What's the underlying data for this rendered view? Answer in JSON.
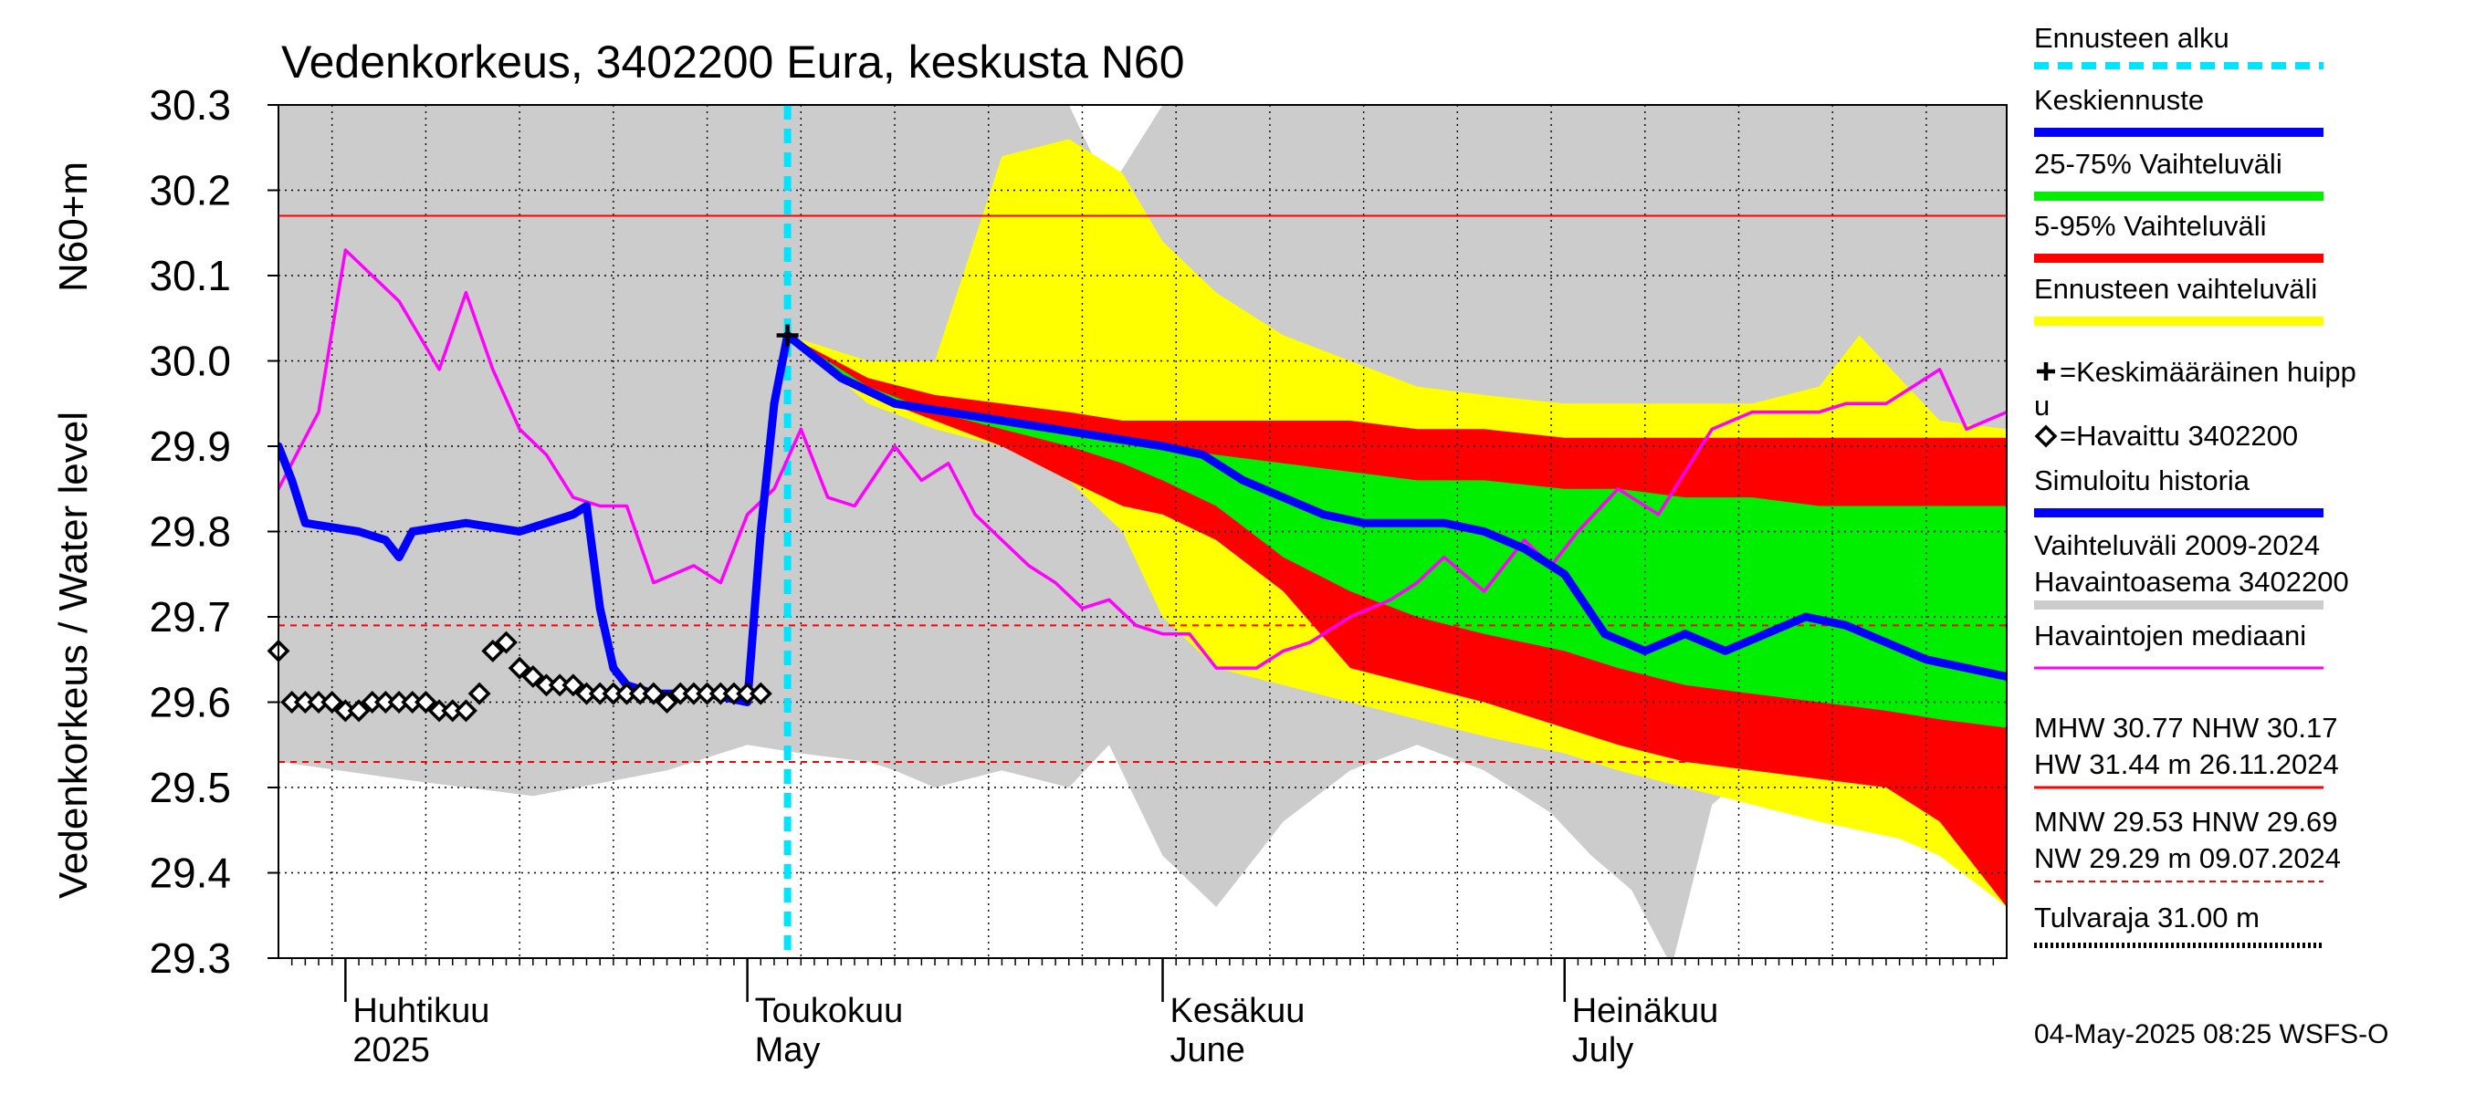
{
  "chart_data": {
    "type": "area",
    "title": "Vedenkorkeus, 3402200 Eura, keskusta N60",
    "ylabel_left": "Vedenkorkeus / Water level",
    "ylabel_unit": "N60+m",
    "ylim": [
      29.3,
      30.3
    ],
    "y_ticks": [
      "29.3",
      "29.4",
      "29.5",
      "29.6",
      "29.7",
      "29.8",
      "29.9",
      "30.0",
      "30.1",
      "30.2",
      "30.3"
    ],
    "x_range": [
      "2025-03-27",
      "2025-08-03"
    ],
    "months": [
      {
        "date": "2025-04-01",
        "fi": "Huhtikuu",
        "en": "2025"
      },
      {
        "date": "2025-05-01",
        "fi": "Toukokuu",
        "en": "May"
      },
      {
        "date": "2025-06-01",
        "fi": "Kesäkuu",
        "en": "June"
      },
      {
        "date": "2025-07-01",
        "fi": "Heinäkuu",
        "en": "July"
      }
    ],
    "forecast_start": "2025-05-04",
    "reference_lines": [
      {
        "name": "NHW",
        "value": 30.17,
        "style": "solid-red"
      },
      {
        "name": "HNW",
        "value": 29.69,
        "style": "dashed-red"
      },
      {
        "name": "MNW",
        "value": 29.53,
        "style": "dashed-red"
      }
    ],
    "series": [
      {
        "name": "Vaihteluväli 2009-2024 Havaintoasema 3402200",
        "type": "band",
        "x": [
          "2025-03-27",
          "2025-04-05",
          "2025-04-15",
          "2025-04-25",
          "2025-05-01",
          "2025-05-05",
          "2025-05-10",
          "2025-05-12",
          "2025-05-15",
          "2025-05-20",
          "2025-05-25",
          "2025-05-28",
          "2025-06-01",
          "2025-06-05",
          "2025-06-10",
          "2025-06-15",
          "2025-06-20",
          "2025-06-25",
          "2025-06-30",
          "2025-07-03",
          "2025-07-06",
          "2025-07-09",
          "2025-07-12",
          "2025-07-15",
          "2025-07-20",
          "2025-07-25",
          "2025-07-31",
          "2025-08-03"
        ],
        "low": [
          29.53,
          29.51,
          29.49,
          29.52,
          29.55,
          29.54,
          29.53,
          29.52,
          29.5,
          29.52,
          29.5,
          29.55,
          29.42,
          29.36,
          29.46,
          29.52,
          29.55,
          29.52,
          29.47,
          29.42,
          29.38,
          29.29,
          29.48,
          29.52,
          29.56,
          29.6,
          29.62,
          29.64
        ],
        "high": [
          30.3,
          30.3,
          30.3,
          30.3,
          30.3,
          30.3,
          30.3,
          30.3,
          30.3,
          30.3,
          30.3,
          30.2,
          30.3,
          30.3,
          30.3,
          30.3,
          30.3,
          30.3,
          30.3,
          30.3,
          30.3,
          30.3,
          30.3,
          30.3,
          30.3,
          30.3,
          30.3,
          30.3
        ]
      },
      {
        "name": "Ennusteen vaihteluväli",
        "type": "band",
        "x": [
          "2025-05-04",
          "2025-05-10",
          "2025-05-15",
          "2025-05-20",
          "2025-05-25",
          "2025-05-29",
          "2025-06-01",
          "2025-06-05",
          "2025-06-10",
          "2025-06-15",
          "2025-06-20",
          "2025-06-25",
          "2025-07-01",
          "2025-07-05",
          "2025-07-10",
          "2025-07-15",
          "2025-07-20",
          "2025-07-23",
          "2025-07-26",
          "2025-07-29",
          "2025-08-03"
        ],
        "low": [
          30.03,
          29.95,
          29.92,
          29.9,
          29.86,
          29.8,
          29.7,
          29.64,
          29.62,
          29.6,
          29.58,
          29.56,
          29.54,
          29.52,
          29.5,
          29.48,
          29.46,
          29.45,
          29.44,
          29.42,
          29.36
        ],
        "high": [
          30.03,
          30.0,
          30.0,
          30.24,
          30.26,
          30.22,
          30.14,
          30.08,
          30.03,
          30.0,
          29.97,
          29.96,
          29.95,
          29.95,
          29.95,
          29.95,
          29.97,
          30.03,
          29.98,
          29.93,
          29.92
        ]
      },
      {
        "name": "5-95% Vaihteluväli",
        "type": "band",
        "x": [
          "2025-05-04",
          "2025-05-10",
          "2025-05-15",
          "2025-05-20",
          "2025-05-25",
          "2025-05-29",
          "2025-06-01",
          "2025-06-05",
          "2025-06-10",
          "2025-06-15",
          "2025-06-20",
          "2025-06-25",
          "2025-07-01",
          "2025-07-05",
          "2025-07-10",
          "2025-07-15",
          "2025-07-20",
          "2025-07-25",
          "2025-07-29",
          "2025-08-03"
        ],
        "low": [
          30.03,
          29.96,
          29.93,
          29.9,
          29.86,
          29.83,
          29.82,
          29.79,
          29.73,
          29.64,
          29.62,
          29.6,
          29.57,
          29.55,
          29.53,
          29.52,
          29.51,
          29.5,
          29.46,
          29.36
        ],
        "high": [
          30.03,
          29.98,
          29.96,
          29.95,
          29.94,
          29.93,
          29.93,
          29.93,
          29.93,
          29.93,
          29.92,
          29.92,
          29.91,
          29.91,
          29.91,
          29.91,
          29.91,
          29.91,
          29.91,
          29.91
        ]
      },
      {
        "name": "25-75% Vaihteluväli",
        "type": "band",
        "x": [
          "2025-05-04",
          "2025-05-10",
          "2025-05-15",
          "2025-05-20",
          "2025-05-25",
          "2025-05-29",
          "2025-06-01",
          "2025-06-05",
          "2025-06-10",
          "2025-06-15",
          "2025-06-20",
          "2025-06-25",
          "2025-07-01",
          "2025-07-05",
          "2025-07-10",
          "2025-07-15",
          "2025-07-20",
          "2025-07-25",
          "2025-07-29",
          "2025-08-03"
        ],
        "low": [
          30.03,
          29.96,
          29.94,
          29.92,
          29.9,
          29.88,
          29.86,
          29.83,
          29.77,
          29.73,
          29.7,
          29.68,
          29.66,
          29.64,
          29.62,
          29.61,
          29.6,
          29.59,
          29.58,
          29.57
        ],
        "high": [
          30.03,
          29.97,
          29.94,
          29.93,
          29.92,
          29.91,
          29.9,
          29.89,
          29.88,
          29.87,
          29.86,
          29.86,
          29.85,
          29.85,
          29.84,
          29.84,
          29.83,
          29.83,
          29.83,
          29.83
        ]
      },
      {
        "name": "Havaintojen mediaani",
        "type": "line",
        "color": "#ff00ff",
        "x": [
          "2025-03-27",
          "2025-03-30",
          "2025-04-01",
          "2025-04-03",
          "2025-04-05",
          "2025-04-08",
          "2025-04-10",
          "2025-04-12",
          "2025-04-14",
          "2025-04-16",
          "2025-04-18",
          "2025-04-20",
          "2025-04-22",
          "2025-04-24",
          "2025-04-27",
          "2025-04-29",
          "2025-05-01",
          "2025-05-03",
          "2025-05-05",
          "2025-05-07",
          "2025-05-09",
          "2025-05-12",
          "2025-05-14",
          "2025-05-16",
          "2025-05-18",
          "2025-05-20",
          "2025-05-22",
          "2025-05-24",
          "2025-05-26",
          "2025-05-28",
          "2025-05-30",
          "2025-06-01",
          "2025-06-03",
          "2025-06-05",
          "2025-06-08",
          "2025-06-10",
          "2025-06-12",
          "2025-06-15",
          "2025-06-18",
          "2025-06-20",
          "2025-06-22",
          "2025-06-25",
          "2025-06-28",
          "2025-06-30",
          "2025-07-02",
          "2025-07-05",
          "2025-07-08",
          "2025-07-10",
          "2025-07-12",
          "2025-07-15",
          "2025-07-18",
          "2025-07-20",
          "2025-07-22",
          "2025-07-25",
          "2025-07-27",
          "2025-07-29",
          "2025-07-31",
          "2025-08-03"
        ],
        "y": [
          29.85,
          29.94,
          30.13,
          30.1,
          30.07,
          29.99,
          30.08,
          29.99,
          29.92,
          29.89,
          29.84,
          29.83,
          29.83,
          29.74,
          29.76,
          29.74,
          29.82,
          29.85,
          29.92,
          29.84,
          29.83,
          29.9,
          29.86,
          29.88,
          29.82,
          29.79,
          29.76,
          29.74,
          29.71,
          29.72,
          29.69,
          29.68,
          29.68,
          29.64,
          29.64,
          29.66,
          29.67,
          29.7,
          29.72,
          29.74,
          29.77,
          29.73,
          29.79,
          29.76,
          29.8,
          29.85,
          29.82,
          29.87,
          29.92,
          29.94,
          29.94,
          29.94,
          29.95,
          29.95,
          29.97,
          29.99,
          29.92,
          29.94
        ]
      },
      {
        "name": "Simuloitu historia",
        "type": "line",
        "color": "#0000ff",
        "x": [
          "2025-03-27",
          "2025-03-28",
          "2025-03-29",
          "2025-04-02",
          "2025-04-04",
          "2025-04-05",
          "2025-04-06",
          "2025-04-10",
          "2025-04-14",
          "2025-04-18",
          "2025-04-19",
          "2025-04-20",
          "2025-04-21",
          "2025-04-22",
          "2025-04-24",
          "2025-04-28",
          "2025-05-01",
          "2025-05-02",
          "2025-05-03"
        ],
        "y": [
          29.9,
          29.86,
          29.81,
          29.8,
          29.79,
          29.77,
          29.8,
          29.81,
          29.8,
          29.82,
          29.83,
          29.71,
          29.64,
          29.62,
          29.61,
          29.61,
          29.6,
          29.8,
          29.95
        ]
      },
      {
        "name": "Keskiennuste",
        "type": "line",
        "color": "#0000ff",
        "x": [
          "2025-05-03",
          "2025-05-04",
          "2025-05-08",
          "2025-05-12",
          "2025-05-16",
          "2025-05-20",
          "2025-05-24",
          "2025-05-28",
          "2025-06-01",
          "2025-06-04",
          "2025-06-07",
          "2025-06-10",
          "2025-06-13",
          "2025-06-16",
          "2025-06-19",
          "2025-06-22",
          "2025-06-25",
          "2025-06-28",
          "2025-07-01",
          "2025-07-04",
          "2025-07-07",
          "2025-07-10",
          "2025-07-13",
          "2025-07-16",
          "2025-07-19",
          "2025-07-22",
          "2025-07-25",
          "2025-07-28",
          "2025-07-31",
          "2025-08-03"
        ],
        "y": [
          29.95,
          30.03,
          29.98,
          29.95,
          29.94,
          29.93,
          29.92,
          29.91,
          29.9,
          29.89,
          29.86,
          29.84,
          29.82,
          29.81,
          29.81,
          29.81,
          29.8,
          29.78,
          29.75,
          29.68,
          29.66,
          29.68,
          29.66,
          29.68,
          29.7,
          29.69,
          29.67,
          29.65,
          29.64,
          29.63
        ]
      },
      {
        "name": "Havaittu 3402200",
        "type": "scatter",
        "marker": "diamond",
        "x": [
          "2025-03-27",
          "2025-03-28",
          "2025-03-29",
          "2025-03-30",
          "2025-03-31",
          "2025-04-01",
          "2025-04-02",
          "2025-04-03",
          "2025-04-04",
          "2025-04-05",
          "2025-04-06",
          "2025-04-07",
          "2025-04-08",
          "2025-04-09",
          "2025-04-10",
          "2025-04-11",
          "2025-04-12",
          "2025-04-13",
          "2025-04-14",
          "2025-04-15",
          "2025-04-16",
          "2025-04-17",
          "2025-04-18",
          "2025-04-19",
          "2025-04-20",
          "2025-04-21",
          "2025-04-22",
          "2025-04-23",
          "2025-04-24",
          "2025-04-25",
          "2025-04-26",
          "2025-04-27",
          "2025-04-28",
          "2025-04-29",
          "2025-04-30",
          "2025-05-01",
          "2025-05-02"
        ],
        "y": [
          29.66,
          29.6,
          29.6,
          29.6,
          29.6,
          29.59,
          29.59,
          29.6,
          29.6,
          29.6,
          29.6,
          29.6,
          29.59,
          29.59,
          29.59,
          29.61,
          29.66,
          29.67,
          29.64,
          29.63,
          29.62,
          29.62,
          29.62,
          29.61,
          29.61,
          29.61,
          29.61,
          29.61,
          29.61,
          29.6,
          29.61,
          29.61,
          29.61,
          29.61,
          29.61,
          29.61,
          29.61
        ]
      },
      {
        "name": "Keskimääräinen huippu",
        "type": "scatter",
        "marker": "plus",
        "x": [
          "2025-05-04"
        ],
        "y": [
          30.03
        ]
      }
    ],
    "legend": [
      {
        "label": "Ennusteen alku",
        "color": "#00e5ff",
        "style": "dashed-thick"
      },
      {
        "label": "Keskiennuste",
        "color": "#0000ff",
        "style": "thick"
      },
      {
        "label": "25-75% Vaihteluväli",
        "color": "#00ee00",
        "style": "thick"
      },
      {
        "label": "5-95% Vaihteluväli",
        "color": "#ff0000",
        "style": "thick"
      },
      {
        "label": "Ennusteen vaihteluväli",
        "color": "#ffff00",
        "style": "thick"
      },
      {
        "label": "=Keskimääräinen huippu",
        "label_wrap": "=Keskimääräinen huipp",
        "label_cont": "u",
        "marker": "plus"
      },
      {
        "label": "=Havaittu 3402200",
        "marker": "diamond"
      },
      {
        "label": "Simuloitu historia",
        "color": "#0000ff",
        "style": "thick"
      },
      {
        "label": "Vaihteluväli 2009-2024",
        "label2": " Havaintoasema 3402200",
        "color": "#cccccc",
        "style": "thick"
      },
      {
        "label": "Havaintojen mediaani",
        "color": "#ff00ff",
        "style": "thin"
      },
      {
        "label": "MHW  30.77 NHW  30.17",
        "label2": "HW  31.44 m 26.11.2024",
        "color": "#ff0000",
        "style": "thin"
      },
      {
        "label": "MNW  29.53 HNW  29.69",
        "label2": "NW  29.29 m 09.07.2024",
        "color": "#ff0000",
        "style": "dashed-thin"
      },
      {
        "label": "Tulvaraja 31.00 m",
        "color": "#000000",
        "style": "dotted-thick"
      }
    ],
    "timestamp": "04-May-2025 08:25 WSFS-O"
  }
}
